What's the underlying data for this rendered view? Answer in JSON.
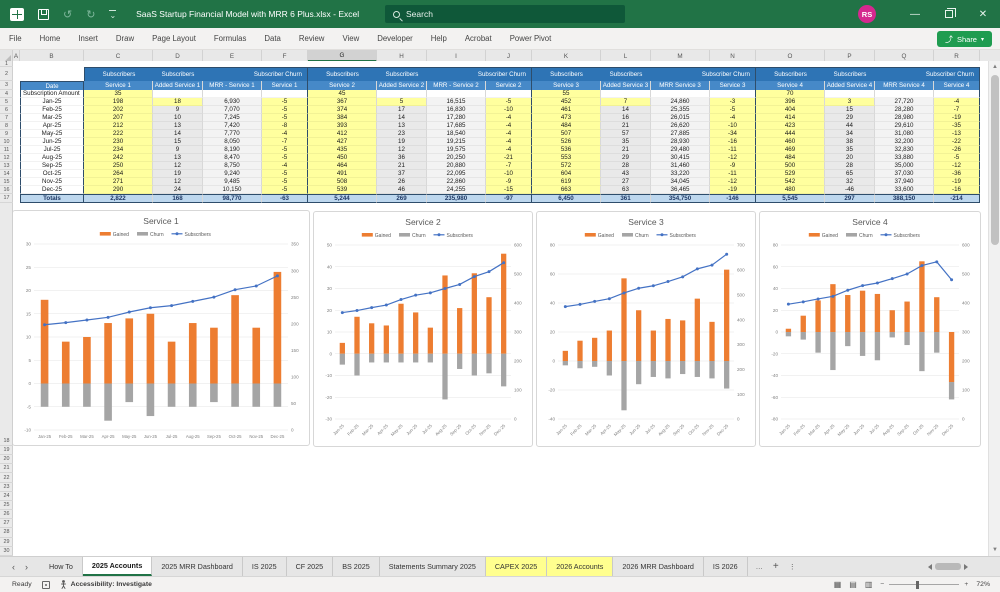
{
  "title_bar": {
    "title": "SaaS Startup Financial Model with MRR 6 Plus.xlsx  -  Excel",
    "search_placeholder": "Search",
    "avatar_initials": "RS"
  },
  "menu": {
    "items": [
      "File",
      "Home",
      "Insert",
      "Draw",
      "Page Layout",
      "Formulas",
      "Data",
      "Review",
      "View",
      "Developer",
      "Help",
      "Acrobat",
      "Power Pivot"
    ],
    "share_label": "Share"
  },
  "grid": {
    "column_letters": [
      "A",
      "B",
      "C",
      "D",
      "E",
      "F",
      "G",
      "H",
      "I",
      "J",
      "K",
      "L",
      "M",
      "N",
      "O",
      "P",
      "Q",
      "R"
    ],
    "selected_column": "G",
    "row_numbers_top": [
      "1",
      "2",
      "3",
      "4",
      "5",
      "6",
      "7",
      "8",
      "9",
      "10",
      "11",
      "12",
      "13",
      "14",
      "15",
      "16",
      "17"
    ],
    "tall_row_number": "18",
    "row_numbers_bottom": [
      "19",
      "20",
      "21",
      "22",
      "23",
      "24",
      "25",
      "26",
      "27",
      "28",
      "29",
      "30"
    ]
  },
  "table": {
    "date_header": "Date",
    "subscription_amount_label": "Subscription Amount",
    "totals_label": "Totals",
    "months": [
      "Jan-25",
      "Feb-25",
      "Mar-25",
      "Apr-25",
      "May-25",
      "Jun-25",
      "Jul-25",
      "Aug-25",
      "Sep-25",
      "Oct-25",
      "Nov-25",
      "Dec-25"
    ],
    "groups": [
      {
        "header_subscribers": "Subscribers",
        "header_added": "Subscribers",
        "header_churn": "Subscriber Churn",
        "columns": [
          "Service 1",
          "Added Service 1",
          "MRR - Service 1",
          "Service 1"
        ],
        "subscription_amount": "35",
        "rows": [
          [
            "198",
            "18",
            "6,930",
            "-5"
          ],
          [
            "202",
            "9",
            "7,070",
            "-5"
          ],
          [
            "207",
            "10",
            "7,245",
            "-5"
          ],
          [
            "212",
            "13",
            "7,420",
            "-8"
          ],
          [
            "222",
            "14",
            "7,770",
            "-4"
          ],
          [
            "230",
            "15",
            "8,050",
            "-7"
          ],
          [
            "234",
            "9",
            "8,190",
            "-5"
          ],
          [
            "242",
            "13",
            "8,470",
            "-5"
          ],
          [
            "250",
            "12",
            "8,750",
            "-4"
          ],
          [
            "264",
            "19",
            "9,240",
            "-5"
          ],
          [
            "271",
            "12",
            "9,485",
            "-5"
          ],
          [
            "290",
            "24",
            "10,150",
            "-5"
          ]
        ],
        "totals": [
          "2,822",
          "168",
          "98,770",
          "-63"
        ]
      },
      {
        "header_subscribers": "Subscribers",
        "header_added": "Subscribers",
        "header_churn": "Subscriber Churn",
        "columns": [
          "Service 2",
          "Added Service 2",
          "MRR - Service 2",
          "Service 2"
        ],
        "subscription_amount": "45",
        "rows": [
          [
            "367",
            "5",
            "16,515",
            "-5"
          ],
          [
            "374",
            "17",
            "16,830",
            "-10"
          ],
          [
            "384",
            "14",
            "17,280",
            "-4"
          ],
          [
            "393",
            "13",
            "17,685",
            "-4"
          ],
          [
            "412",
            "23",
            "18,540",
            "-4"
          ],
          [
            "427",
            "19",
            "19,215",
            "-4"
          ],
          [
            "435",
            "12",
            "19,575",
            "-4"
          ],
          [
            "450",
            "36",
            "20,250",
            "-21"
          ],
          [
            "464",
            "21",
            "20,880",
            "-7"
          ],
          [
            "491",
            "37",
            "22,095",
            "-10"
          ],
          [
            "508",
            "26",
            "22,860",
            "-9"
          ],
          [
            "539",
            "46",
            "24,255",
            "-15"
          ]
        ],
        "totals": [
          "5,244",
          "269",
          "235,980",
          "-97"
        ]
      },
      {
        "header_subscribers": "Subscribers",
        "header_added": "Subscribers",
        "header_churn": "Subscriber Churn",
        "columns": [
          "Service 3",
          "Added Service 3",
          "MRR  Service 3",
          "Service 3"
        ],
        "subscription_amount": "55",
        "rows": [
          [
            "452",
            "7",
            "24,860",
            "-3"
          ],
          [
            "461",
            "14",
            "25,355",
            "-5"
          ],
          [
            "473",
            "16",
            "26,015",
            "-4"
          ],
          [
            "484",
            "21",
            "26,620",
            "-10"
          ],
          [
            "507",
            "57",
            "27,885",
            "-34"
          ],
          [
            "526",
            "35",
            "28,930",
            "-16"
          ],
          [
            "536",
            "21",
            "29,480",
            "-11"
          ],
          [
            "553",
            "29",
            "30,415",
            "-12"
          ],
          [
            "572",
            "28",
            "31,460",
            "-9"
          ],
          [
            "604",
            "43",
            "33,220",
            "-11"
          ],
          [
            "619",
            "27",
            "34,045",
            "-12"
          ],
          [
            "663",
            "63",
            "36,465",
            "-19"
          ]
        ],
        "totals": [
          "6,450",
          "361",
          "354,750",
          "-146"
        ]
      },
      {
        "header_subscribers": "Subscribers",
        "header_added": "Subscribers",
        "header_churn": "Subscriber Churn",
        "columns": [
          "Service 4",
          "Added Service 4",
          "MRR Service 4",
          "Service 4"
        ],
        "subscription_amount": "70",
        "rows": [
          [
            "396",
            "3",
            "27,720",
            "-4"
          ],
          [
            "404",
            "15",
            "28,280",
            "-7"
          ],
          [
            "414",
            "29",
            "28,980",
            "-19"
          ],
          [
            "423",
            "44",
            "29,610",
            "-35"
          ],
          [
            "444",
            "34",
            "31,080",
            "-13"
          ],
          [
            "460",
            "38",
            "32,200",
            "-22"
          ],
          [
            "469",
            "35",
            "32,830",
            "-26"
          ],
          [
            "484",
            "20",
            "33,880",
            "-5"
          ],
          [
            "500",
            "28",
            "35,000",
            "-12"
          ],
          [
            "529",
            "65",
            "37,030",
            "-36"
          ],
          [
            "542",
            "32",
            "37,940",
            "-19"
          ],
          [
            "480",
            "-46",
            "33,600",
            "-16"
          ]
        ],
        "totals": [
          "5,545",
          "297",
          "388,150",
          "-214"
        ]
      }
    ]
  },
  "chart_data": [
    {
      "type": "combo",
      "title": "Service 1",
      "categories": [
        "Jan-25",
        "Feb-25",
        "Mar-25",
        "Apr-25",
        "May-25",
        "Jun-25",
        "Jul-25",
        "Aug-25",
        "Sep-25",
        "Oct-25",
        "Nov-25",
        "Dec-25"
      ],
      "series": [
        {
          "name": "Gained",
          "kind": "bar",
          "axis": "left",
          "color": "#ED7D31",
          "values": [
            18,
            9,
            10,
            13,
            14,
            15,
            9,
            13,
            12,
            19,
            12,
            24
          ]
        },
        {
          "name": "Churn",
          "kind": "bar",
          "axis": "left",
          "color": "#A5A5A5",
          "values": [
            -5,
            -5,
            -5,
            -8,
            -4,
            -7,
            -5,
            -5,
            -4,
            -5,
            -5,
            -5
          ]
        },
        {
          "name": "Subscribers",
          "kind": "line",
          "axis": "right",
          "color": "#4472C4",
          "values": [
            198,
            202,
            207,
            212,
            222,
            230,
            234,
            242,
            250,
            264,
            271,
            290
          ]
        }
      ],
      "left_axis": {
        "min": -10,
        "max": 30,
        "step": 5
      },
      "right_axis": {
        "min": 0,
        "max": 350,
        "step": 50
      },
      "rotated_labels": false,
      "grid": true,
      "legend_position": "top"
    },
    {
      "type": "combo",
      "title": "Service 2",
      "categories": [
        "Jan-25",
        "Feb-25",
        "Mar-25",
        "Apr-25",
        "May-25",
        "Jun-25",
        "Jul-25",
        "Aug-25",
        "Sep-25",
        "Oct-25",
        "Nov-25",
        "Dec-25"
      ],
      "series": [
        {
          "name": "Gained",
          "kind": "bar",
          "axis": "left",
          "color": "#ED7D31",
          "values": [
            5,
            17,
            14,
            13,
            23,
            19,
            12,
            36,
            21,
            37,
            26,
            46
          ]
        },
        {
          "name": "Churn",
          "kind": "bar",
          "axis": "left",
          "color": "#A5A5A5",
          "values": [
            -5,
            -10,
            -4,
            -4,
            -4,
            -4,
            -4,
            -21,
            -7,
            -10,
            -9,
            -15
          ]
        },
        {
          "name": "Subscribers",
          "kind": "line",
          "axis": "right",
          "color": "#4472C4",
          "values": [
            367,
            374,
            384,
            393,
            412,
            427,
            435,
            450,
            464,
            491,
            508,
            539
          ]
        }
      ],
      "left_axis": {
        "min": -30,
        "max": 50,
        "step": 10
      },
      "right_axis": {
        "min": 0,
        "max": 600,
        "step": 100
      },
      "rotated_labels": true,
      "grid": true,
      "legend_position": "top"
    },
    {
      "type": "combo",
      "title": "Service 3",
      "categories": [
        "Jan-25",
        "Feb-25",
        "Mar-25",
        "Apr-25",
        "May-25",
        "Jun-25",
        "Jul-25",
        "Aug-25",
        "Sep-25",
        "Oct-25",
        "Nov-25",
        "Dec-25"
      ],
      "series": [
        {
          "name": "Gained",
          "kind": "bar",
          "axis": "left",
          "color": "#ED7D31",
          "values": [
            7,
            14,
            16,
            21,
            57,
            35,
            21,
            29,
            28,
            43,
            27,
            63
          ]
        },
        {
          "name": "Churn",
          "kind": "bar",
          "axis": "left",
          "color": "#A5A5A5",
          "values": [
            -3,
            -5,
            -4,
            -10,
            -34,
            -16,
            -11,
            -12,
            -9,
            -11,
            -12,
            -19
          ]
        },
        {
          "name": "Subscribers",
          "kind": "line",
          "axis": "right",
          "color": "#4472C4",
          "values": [
            452,
            461,
            473,
            484,
            507,
            526,
            536,
            553,
            572,
            604,
            619,
            663
          ]
        }
      ],
      "left_axis": {
        "min": -40,
        "max": 80,
        "step": 20
      },
      "right_axis": {
        "min": 0,
        "max": 700,
        "step": 100
      },
      "rotated_labels": true,
      "grid": true,
      "legend_position": "top"
    },
    {
      "type": "combo",
      "title": "Service 4",
      "categories": [
        "Jan-25",
        "Feb-25",
        "Mar-25",
        "Apr-25",
        "May-25",
        "Jun-25",
        "Jul-25",
        "Aug-25",
        "Sep-25",
        "Oct-25",
        "Nov-25",
        "Dec-25"
      ],
      "series": [
        {
          "name": "Gained",
          "kind": "bar",
          "axis": "left",
          "color": "#ED7D31",
          "values": [
            3,
            15,
            29,
            44,
            34,
            38,
            35,
            20,
            28,
            65,
            32,
            -46
          ]
        },
        {
          "name": "Churn",
          "kind": "bar",
          "axis": "left",
          "color": "#A5A5A5",
          "values": [
            -4,
            -7,
            -19,
            -35,
            -13,
            -22,
            -26,
            -5,
            -12,
            -36,
            -19,
            -16
          ]
        },
        {
          "name": "Subscribers",
          "kind": "line",
          "axis": "right",
          "color": "#4472C4",
          "values": [
            396,
            404,
            414,
            423,
            444,
            460,
            469,
            484,
            500,
            529,
            542,
            480
          ]
        }
      ],
      "left_axis": {
        "min": -80,
        "max": 80,
        "step": 20
      },
      "right_axis": {
        "min": 0,
        "max": 600,
        "step": 100
      },
      "rotated_labels": true,
      "grid": true,
      "legend_position": "top"
    }
  ],
  "sheet_tabs": {
    "tabs": [
      {
        "label": "How To"
      },
      {
        "label": "2025 Accounts",
        "active": true
      },
      {
        "label": "2025 MRR Dashboard"
      },
      {
        "label": "IS 2025"
      },
      {
        "label": "CF 2025"
      },
      {
        "label": "BS 2025"
      },
      {
        "label": "Statements Summary 2025"
      },
      {
        "label": "CAPEX 2025",
        "highlight": true
      },
      {
        "label": "2026 Accounts",
        "highlight": true
      },
      {
        "label": "2026 MRR Dashboard"
      },
      {
        "label": "IS 2026"
      }
    ],
    "more_label": "…",
    "add_label": "+"
  },
  "status_bar": {
    "left": "Ready",
    "accessibility": "Accessibility: Investigate",
    "zoom_level": "72%"
  },
  "colors": {
    "excel_green": "#217346",
    "header_blue_dark": "#2E74B5",
    "header_blue": "#4689C8",
    "totals_blue": "#BDD7EE",
    "input_yellow": "#FFFF9E",
    "bar_orange": "#ED7D31",
    "bar_gray": "#A5A5A5",
    "line_blue": "#4472C4",
    "tab_yellow": "#FFFF8F"
  }
}
